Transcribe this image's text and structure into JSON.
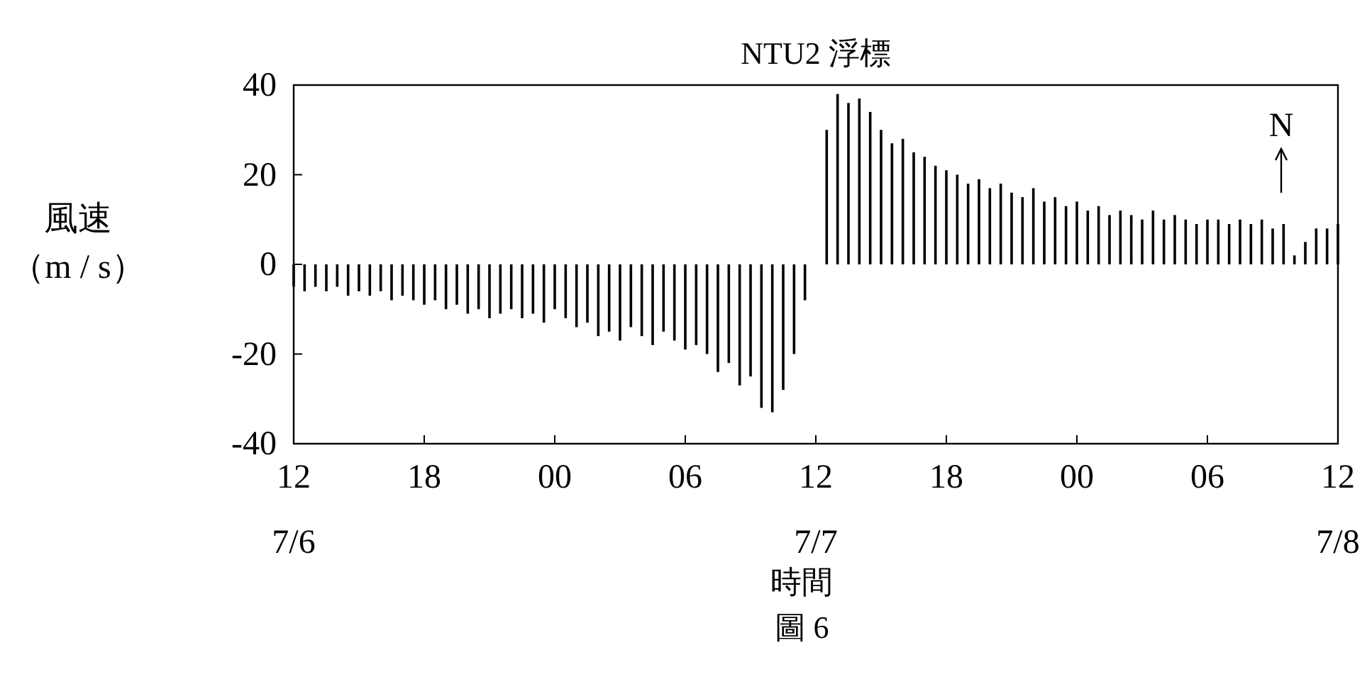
{
  "chart_data": {
    "type": "bar",
    "title": "NTU2 浮標",
    "xlabel": "時間",
    "ylabel": "風速（m / s）",
    "x": [
      12,
      12.5,
      13,
      13.5,
      14,
      14.5,
      15,
      15.5,
      16,
      16.5,
      17,
      17.5,
      18,
      18.5,
      19,
      19.5,
      20,
      20.5,
      21,
      21.5,
      22,
      22.5,
      23,
      23.5,
      24,
      24.5,
      25,
      25.5,
      26,
      26.5,
      27,
      27.5,
      28,
      28.5,
      29,
      29.5,
      30,
      30.5,
      31,
      31.5,
      32,
      32.5,
      33,
      33.5,
      34,
      34.5,
      35,
      35.5,
      36,
      36.5,
      37,
      37.5,
      38,
      38.5,
      39,
      39.5,
      40,
      40.5,
      41,
      41.5,
      42,
      42.5,
      43,
      43.5,
      44,
      44.5,
      45,
      45.5,
      46,
      46.5,
      47,
      47.5,
      48,
      48.5,
      49,
      49.5,
      50,
      50.5,
      51,
      51.5,
      52,
      52.5,
      53,
      53.5,
      54,
      54.5,
      55,
      55.5,
      56,
      56.5,
      57,
      57.5,
      58,
      58.5,
      59,
      59.5,
      60
    ],
    "values": [
      -5,
      -6,
      -5,
      -6,
      -5,
      -7,
      -6,
      -7,
      -6,
      -8,
      -7,
      -8,
      -9,
      -8,
      -10,
      -9,
      -11,
      -10,
      -12,
      -11,
      -10,
      -12,
      -11,
      -13,
      -10,
      -12,
      -14,
      -13,
      -16,
      -15,
      -17,
      -14,
      -16,
      -18,
      -15,
      -17,
      -19,
      -18,
      -20,
      -24,
      -22,
      -27,
      -25,
      -32,
      -33,
      -28,
      -20,
      -8,
      0,
      30,
      38,
      36,
      37,
      34,
      30,
      27,
      28,
      25,
      24,
      22,
      21,
      20,
      18,
      19,
      17,
      18,
      16,
      15,
      17,
      14,
      15,
      13,
      14,
      12,
      13,
      11,
      12,
      11,
      10,
      12,
      10,
      11,
      10,
      9,
      10,
      10,
      9,
      10,
      9,
      10,
      8,
      9,
      2,
      5,
      8,
      8,
      9
    ],
    "color": "#000000",
    "xlim": [
      12,
      60
    ],
    "xticks": [
      {
        "value": 12,
        "label": "12"
      },
      {
        "value": 18,
        "label": "18"
      },
      {
        "value": 24,
        "label": "00"
      },
      {
        "value": 30,
        "label": "06"
      },
      {
        "value": 36,
        "label": "12"
      },
      {
        "value": 42,
        "label": "18"
      },
      {
        "value": 48,
        "label": "00"
      },
      {
        "value": 54,
        "label": "06"
      },
      {
        "value": 60,
        "label": "12"
      }
    ],
    "ylim": [
      -40,
      40
    ],
    "yticks": [
      -40,
      -20,
      0,
      20,
      40
    ],
    "annotations": [
      "7/6",
      "7/7",
      "7/8",
      "N",
      "圖 6"
    ]
  }
}
